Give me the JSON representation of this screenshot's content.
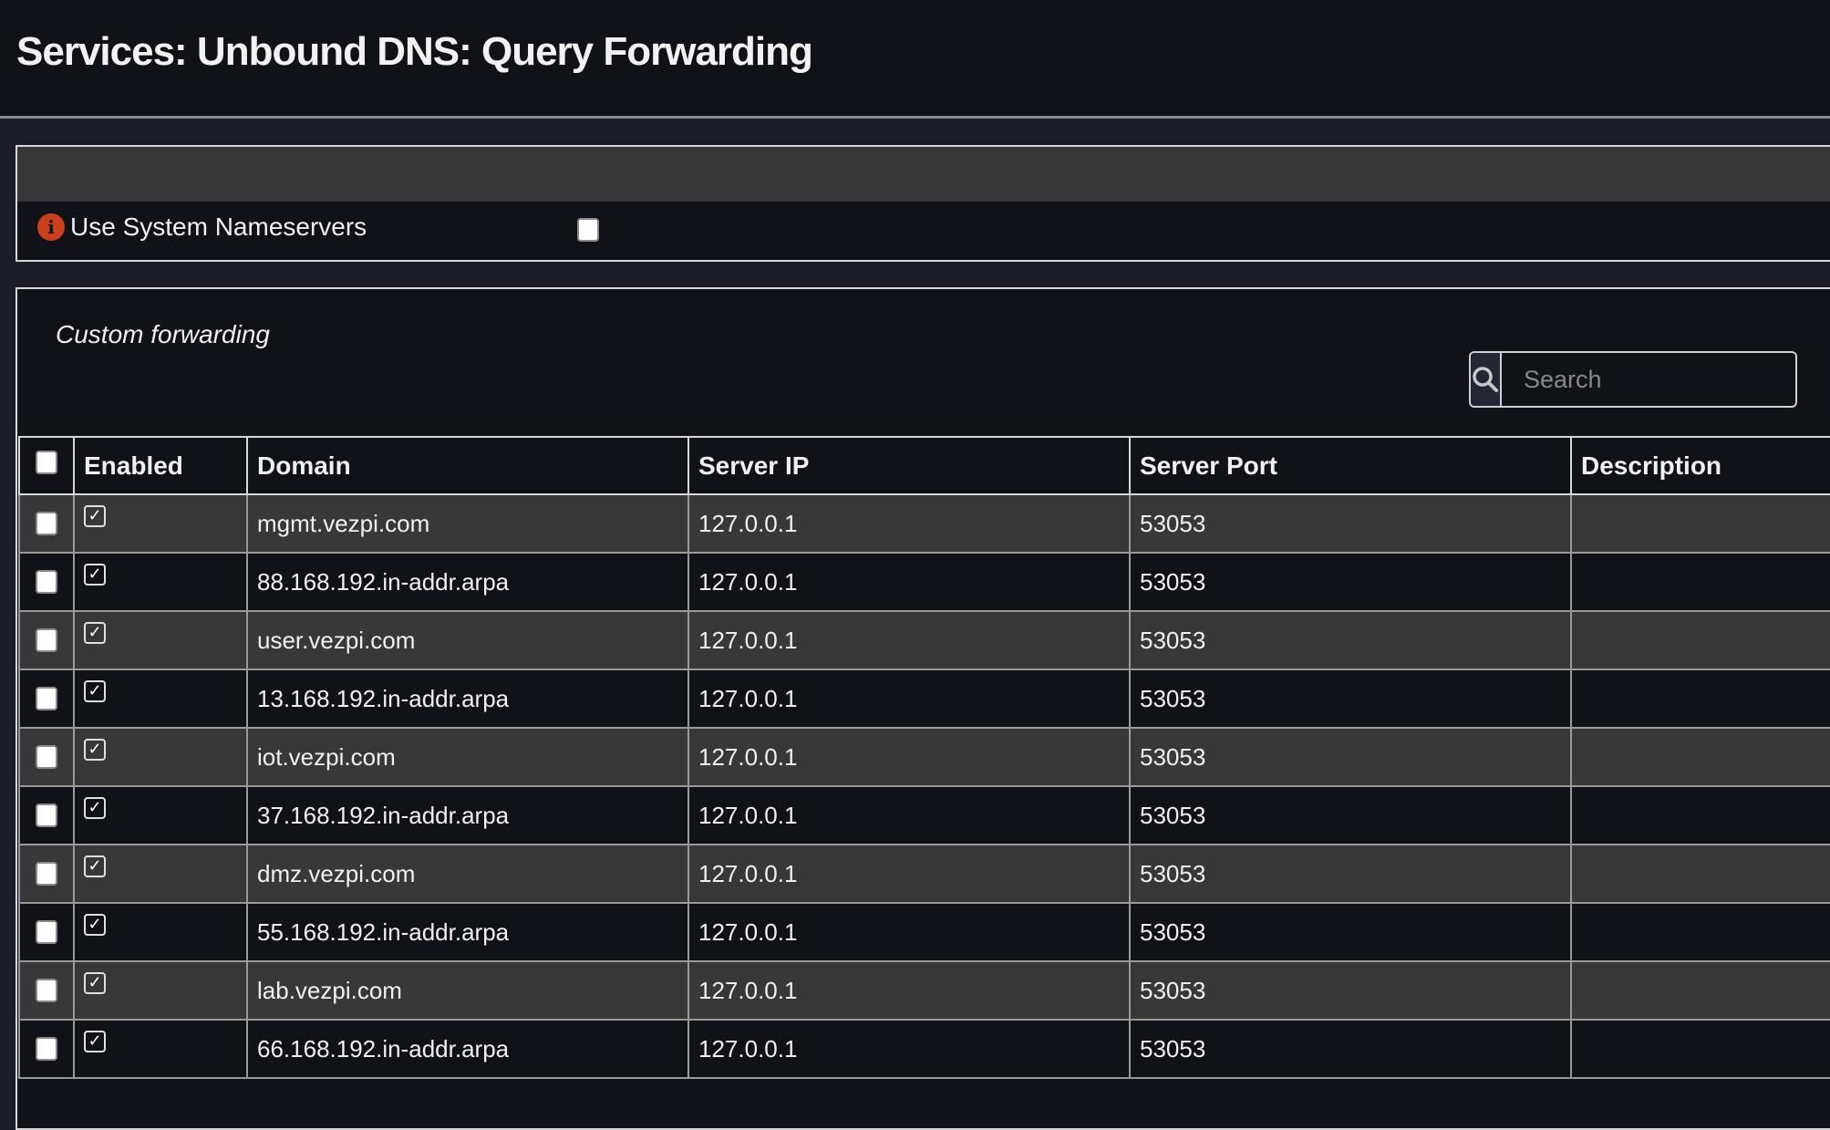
{
  "page": {
    "title": "Services: Unbound DNS: Query Forwarding"
  },
  "general": {
    "use_system_nameservers_label": "Use System Nameservers",
    "use_system_nameservers_checked": false,
    "info_icon": "info-circle-icon"
  },
  "custom": {
    "section_title": "Custom forwarding",
    "search_placeholder": "Search",
    "columns": [
      "Enabled",
      "Domain",
      "Server IP",
      "Server Port",
      "Description"
    ],
    "rows": [
      {
        "enabled": true,
        "domain": "mgmt.vezpi.com",
        "server_ip": "127.0.0.1",
        "server_port": "53053",
        "description": ""
      },
      {
        "enabled": true,
        "domain": "88.168.192.in-addr.arpa",
        "server_ip": "127.0.0.1",
        "server_port": "53053",
        "description": ""
      },
      {
        "enabled": true,
        "domain": "user.vezpi.com",
        "server_ip": "127.0.0.1",
        "server_port": "53053",
        "description": ""
      },
      {
        "enabled": true,
        "domain": "13.168.192.in-addr.arpa",
        "server_ip": "127.0.0.1",
        "server_port": "53053",
        "description": ""
      },
      {
        "enabled": true,
        "domain": "iot.vezpi.com",
        "server_ip": "127.0.0.1",
        "server_port": "53053",
        "description": ""
      },
      {
        "enabled": true,
        "domain": "37.168.192.in-addr.arpa",
        "server_ip": "127.0.0.1",
        "server_port": "53053",
        "description": ""
      },
      {
        "enabled": true,
        "domain": "dmz.vezpi.com",
        "server_ip": "127.0.0.1",
        "server_port": "53053",
        "description": ""
      },
      {
        "enabled": true,
        "domain": "55.168.192.in-addr.arpa",
        "server_ip": "127.0.0.1",
        "server_port": "53053",
        "description": ""
      },
      {
        "enabled": true,
        "domain": "lab.vezpi.com",
        "server_ip": "127.0.0.1",
        "server_port": "53053",
        "description": ""
      },
      {
        "enabled": true,
        "domain": "66.168.192.in-addr.arpa",
        "server_ip": "127.0.0.1",
        "server_port": "53053",
        "description": ""
      }
    ]
  },
  "colors": {
    "background": "#1a1c27",
    "panel": "#111217",
    "row_alt": "#383838",
    "info": "#c9401a"
  }
}
